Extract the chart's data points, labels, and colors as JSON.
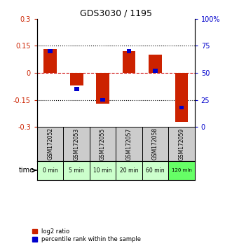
{
  "title": "GDS3030 / 1195",
  "samples": [
    "GSM172052",
    "GSM172053",
    "GSM172055",
    "GSM172057",
    "GSM172058",
    "GSM172059"
  ],
  "time_labels": [
    "0 min",
    "5 min",
    "10 min",
    "20 min",
    "60 min",
    "120 min"
  ],
  "log2_ratio": [
    0.13,
    -0.07,
    -0.17,
    0.12,
    0.1,
    -0.27
  ],
  "percentile_rank": [
    70,
    35,
    25,
    70,
    52,
    18
  ],
  "ylim_left": [
    -0.3,
    0.3
  ],
  "ylim_right": [
    0,
    100
  ],
  "yticks_left": [
    -0.3,
    -0.15,
    0,
    0.15,
    0.3
  ],
  "yticks_right": [
    0,
    25,
    50,
    75,
    100
  ],
  "bar_color_red": "#cc2200",
  "bar_color_blue": "#0000cc",
  "dashed_color": "#cc0000",
  "sample_bg": "#cccccc",
  "time_bg_light": "#ccffcc",
  "time_bg_bright": "#66ff66",
  "legend_red_label": "log2 ratio",
  "legend_blue_label": "percentile rank within the sample",
  "bar_width": 0.5,
  "blue_bar_width": 0.18,
  "blue_bar_height": 0.022
}
